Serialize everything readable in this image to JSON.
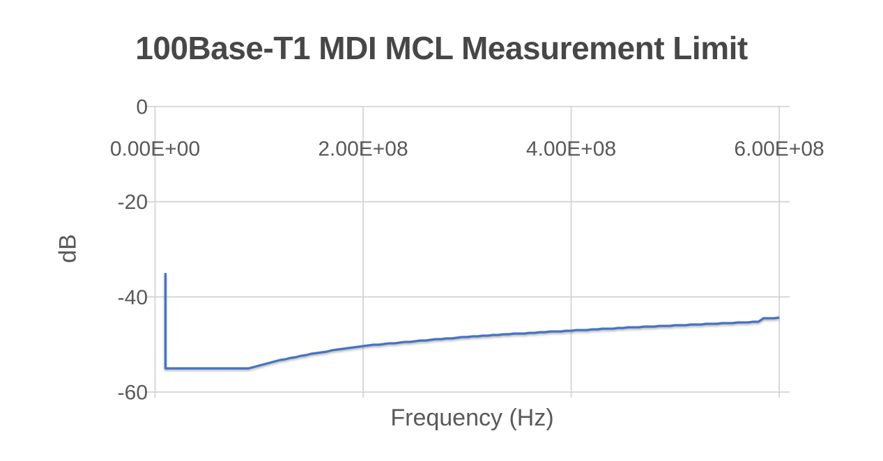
{
  "chart_data": {
    "type": "line",
    "title": "100Base-T1 MDI MCL Measurement Limit",
    "xlabel": "Frequency (Hz)",
    "ylabel": "dB",
    "xlim": [
      0,
      610000000
    ],
    "ylim": [
      -60,
      0
    ],
    "grid": true,
    "legend": "none",
    "x_ticks": [
      {
        "value": 0,
        "label": "0.00E+00"
      },
      {
        "value": 200000000,
        "label": "2.00E+08"
      },
      {
        "value": 400000000,
        "label": "4.00E+08"
      },
      {
        "value": 600000000,
        "label": "6.00E+08"
      }
    ],
    "y_ticks": [
      {
        "value": 0,
        "label": "0"
      },
      {
        "value": -20,
        "label": "-20"
      },
      {
        "value": -40,
        "label": "-40"
      },
      {
        "value": -60,
        "label": "-60"
      }
    ],
    "series": [
      {
        "color": "#4472C4",
        "points": [
          [
            10000000,
            -35.0
          ],
          [
            10000000,
            -55.0
          ],
          [
            90000000,
            -55.0
          ],
          [
            120000000,
            -53.3
          ],
          [
            150000000,
            -52.0
          ],
          [
            180000000,
            -50.9
          ],
          [
            200000000,
            -50.3
          ],
          [
            250000000,
            -49.3
          ],
          [
            300000000,
            -48.4
          ],
          [
            350000000,
            -47.7
          ],
          [
            400000000,
            -47.1
          ],
          [
            450000000,
            -46.5
          ],
          [
            500000000,
            -46.0
          ],
          [
            550000000,
            -45.5
          ],
          [
            580000000,
            -45.2
          ],
          [
            585000000,
            -44.5
          ],
          [
            600000000,
            -44.4
          ]
        ]
      }
    ]
  },
  "colors": {
    "line": "#4472C4",
    "gridline": "#D4D4D4",
    "tick_text": "#595959",
    "title_text": "#474747",
    "background": "#FFFFFF"
  }
}
